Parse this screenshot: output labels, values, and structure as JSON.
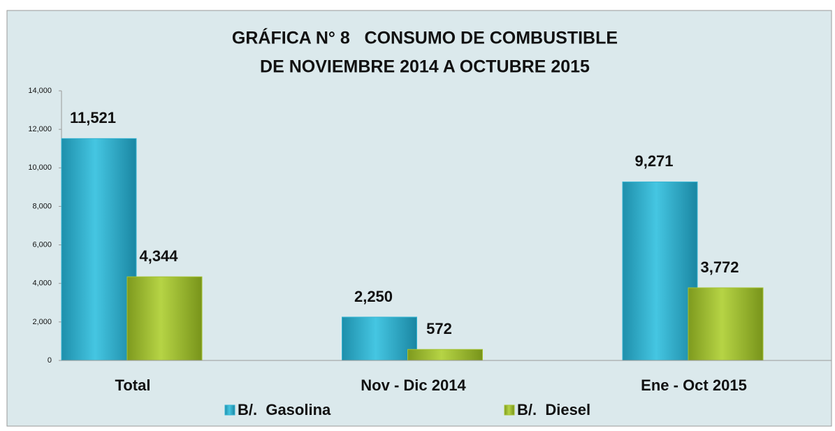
{
  "chart_data": {
    "type": "bar",
    "title": "GRÁFICA N° 8   CONSUMO DE COMBUSTIBLE",
    "subtitle": "DE NOVIEMBRE 2014 A OCTUBRE 2015",
    "categories": [
      "Total",
      "Nov - Dic 2014",
      "Ene - Oct 2015"
    ],
    "series": [
      {
        "name": "B/.  Gasolina",
        "color": "#34b4d2",
        "values": [
          11521,
          2250,
          9271
        ],
        "value_labels": [
          "11,521",
          "2,250",
          "9,271"
        ]
      },
      {
        "name": "B/.  Diesel",
        "color": "#a4c234",
        "values": [
          4344,
          572,
          3772
        ],
        "value_labels": [
          "4,344",
          "572",
          "3,772"
        ]
      }
    ],
    "ylim": [
      0,
      14000
    ],
    "yticks": [
      0,
      {
        "value": 2000,
        "label": "2,000"
      },
      {
        "value": 4000,
        "label": "4,000"
      },
      {
        "value": 6000,
        "label": "6,000"
      },
      {
        "value": 8000,
        "label": "8,000"
      },
      {
        "value": 10000,
        "label": "10,000"
      },
      {
        "value": 12000,
        "label": "12,000"
      },
      {
        "value": 14000,
        "label": "14,000"
      }
    ],
    "grid": false,
    "legend": "bottom"
  }
}
